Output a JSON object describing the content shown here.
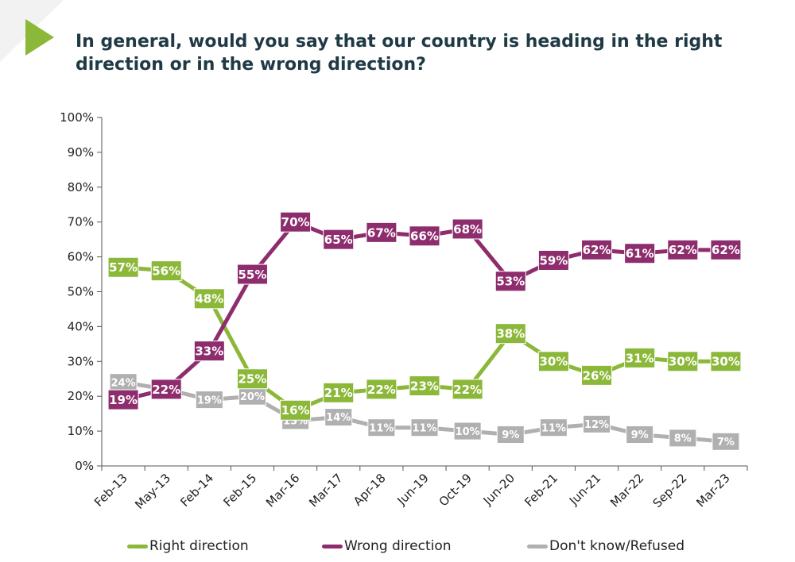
{
  "header": {
    "title": "In general, would you say that our country is heading in the right direction or in the wrong direction?"
  },
  "colors": {
    "right": "#8cb83a",
    "wrong": "#8e2d6e",
    "dontknow": "#b0b0b0",
    "accent_triangle": "#8cb83a",
    "corner_gray": "#f2f2f2"
  },
  "chart_data": {
    "type": "line",
    "title": "In general, would you say that our country is heading in the right direction or in the wrong direction?",
    "xlabel": "",
    "ylabel": "",
    "ylim": [
      0,
      100
    ],
    "yticks": [
      "0%",
      "10%",
      "20%",
      "30%",
      "40%",
      "50%",
      "60%",
      "70%",
      "80%",
      "90%",
      "100%"
    ],
    "categories": [
      "Feb-13",
      "May-13",
      "Feb-14",
      "Feb-15",
      "Mar-16",
      "Mar-17",
      "Apr-18",
      "Jun-19",
      "Oct-19",
      "Jun-20",
      "Feb-21",
      "Jun-21",
      "Mar-22",
      "Sep-22",
      "Mar-23"
    ],
    "series": [
      {
        "name": "Right direction",
        "key": "right",
        "values": [
          57,
          56,
          48,
          25,
          16,
          21,
          22,
          23,
          22,
          38,
          30,
          26,
          31,
          30,
          30
        ]
      },
      {
        "name": "Wrong direction",
        "key": "wrong",
        "values": [
          19,
          22,
          33,
          55,
          70,
          65,
          67,
          66,
          68,
          53,
          59,
          62,
          61,
          62,
          62
        ]
      },
      {
        "name": "Don't know/Refused",
        "key": "dontknow",
        "values": [
          24,
          22,
          19,
          20,
          13,
          14,
          11,
          11,
          10,
          9,
          11,
          12,
          9,
          8,
          7
        ]
      }
    ],
    "grid": false,
    "legend_position": "bottom"
  },
  "legend": {
    "right": "Right direction",
    "wrong": "Wrong direction",
    "dontknow": "Don't know/Refused"
  }
}
